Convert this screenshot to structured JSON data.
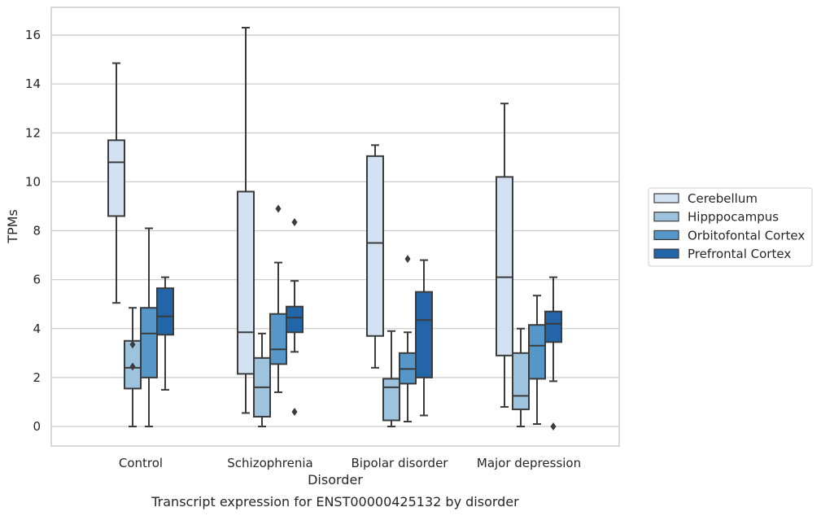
{
  "chart_data": {
    "type": "box",
    "title": "",
    "caption": "Transcript expression for ENST00000425132 by disorder",
    "xlabel": "Disorder",
    "ylabel": "TPMs",
    "ylim": [
      -0.8,
      17.1
    ],
    "yticks": [
      0,
      2,
      4,
      6,
      8,
      10,
      12,
      14,
      16
    ],
    "grid": "horizontal",
    "legend_position": "right, outside plot",
    "categories": [
      "Control",
      "Schizophrenia",
      "Bipolar disorder",
      "Major depression"
    ],
    "series": [
      {
        "name": "Cerebellum",
        "color": "#d3e2f2",
        "boxes": [
          {
            "whisker_low": 5.05,
            "q1": 8.6,
            "median": 10.8,
            "q3": 11.7,
            "whisker_high": 14.85,
            "outliers": []
          },
          {
            "whisker_low": 0.55,
            "q1": 2.15,
            "median": 3.85,
            "q3": 9.6,
            "whisker_high": 16.3,
            "outliers": []
          },
          {
            "whisker_low": 2.4,
            "q1": 3.7,
            "median": 7.5,
            "q3": 11.05,
            "whisker_high": 11.5,
            "outliers": []
          },
          {
            "whisker_low": 0.8,
            "q1": 2.9,
            "median": 6.1,
            "q3": 10.2,
            "whisker_high": 13.2,
            "outliers": []
          }
        ]
      },
      {
        "name": "Hipppocampus",
        "color": "#9dc3de",
        "boxes": [
          {
            "whisker_low": 0.0,
            "q1": 1.55,
            "median": 2.4,
            "q3": 3.5,
            "whisker_high": 4.85,
            "outliers": [
              3.35,
              2.45
            ]
          },
          {
            "whisker_low": 0.0,
            "q1": 0.4,
            "median": 1.6,
            "q3": 2.8,
            "whisker_high": 3.8,
            "outliers": []
          },
          {
            "whisker_low": 0.0,
            "q1": 0.25,
            "median": 1.6,
            "q3": 1.95,
            "whisker_high": 3.9,
            "outliers": []
          },
          {
            "whisker_low": 0.0,
            "q1": 0.7,
            "median": 1.25,
            "q3": 3.0,
            "whisker_high": 4.0,
            "outliers": []
          }
        ]
      },
      {
        "name": "Orbitofontal Cortex",
        "color": "#5597c9",
        "boxes": [
          {
            "whisker_low": 0.0,
            "q1": 2.0,
            "median": 3.8,
            "q3": 4.85,
            "whisker_high": 8.1,
            "outliers": []
          },
          {
            "whisker_low": 1.4,
            "q1": 2.55,
            "median": 3.15,
            "q3": 4.6,
            "whisker_high": 6.7,
            "outliers": [
              8.9
            ]
          },
          {
            "whisker_low": 0.2,
            "q1": 1.75,
            "median": 2.35,
            "q3": 3.0,
            "whisker_high": 3.85,
            "outliers": [
              6.85
            ]
          },
          {
            "whisker_low": 0.1,
            "q1": 1.95,
            "median": 3.3,
            "q3": 4.15,
            "whisker_high": 5.35,
            "outliers": []
          }
        ]
      },
      {
        "name": "Prefrontal Cortex",
        "color": "#2266a9",
        "boxes": [
          {
            "whisker_low": 1.5,
            "q1": 3.75,
            "median": 4.5,
            "q3": 5.65,
            "whisker_high": 6.1,
            "outliers": []
          },
          {
            "whisker_low": 3.05,
            "q1": 3.85,
            "median": 4.45,
            "q3": 4.9,
            "whisker_high": 5.95,
            "outliers": [
              8.35,
              0.6
            ]
          },
          {
            "whisker_low": 0.45,
            "q1": 2.0,
            "median": 4.35,
            "q3": 5.5,
            "whisker_high": 6.8,
            "outliers": []
          },
          {
            "whisker_low": 1.85,
            "q1": 3.45,
            "median": 4.2,
            "q3": 4.7,
            "whisker_high": 6.1,
            "outliers": [
              0.0
            ]
          }
        ]
      }
    ]
  }
}
